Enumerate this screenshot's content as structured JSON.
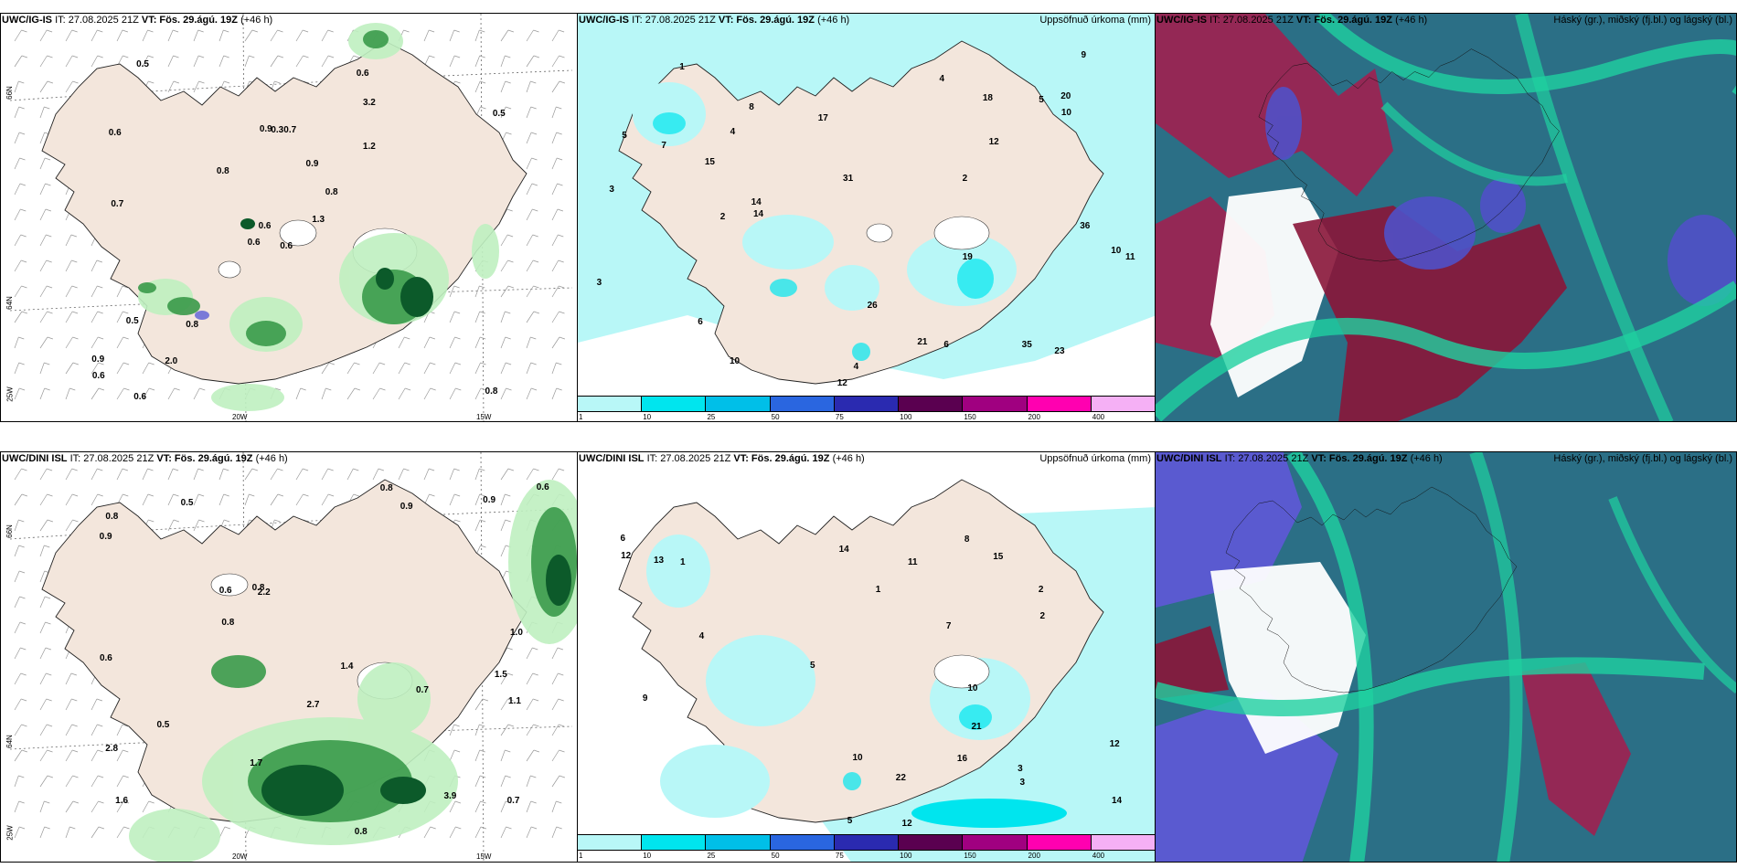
{
  "panels": [
    {
      "id": "top-left",
      "model": "UWC/IG-IS",
      "it": "IT: 27.08.2025 21Z",
      "vt": "VT: Fös. 29.ágú. 19Z",
      "lead": "(+46 h)",
      "right_title": "",
      "lead_wrap": "h)"
    },
    {
      "id": "top-mid",
      "model": "UWC/IG-IS",
      "it": "IT: 27.08.2025 21Z",
      "vt": "VT: Fös. 29.ágú. 19Z",
      "lead": "(+46 h)",
      "right_title": "Uppsöfnuð úrkoma (mm)"
    },
    {
      "id": "top-right",
      "model": "UWC/IG-IS",
      "it": "IT: 27.08.2025 21Z",
      "vt": "VT: Fös. 29.ágú. 19Z",
      "lead": "(+46 h)",
      "right_title": "Háský (gr.), miðský (fj.bl.) og lágský (bl.)"
    },
    {
      "id": "bottom-left",
      "model": "UWC/DINI ISL",
      "it": "IT: 27.08.2025 21Z",
      "vt": "VT: Fös. 29.ágú. 19Z",
      "lead": "(+46 h)",
      "right_title": ""
    },
    {
      "id": "bottom-mid",
      "model": "UWC/DINI ISL",
      "it": "IT: 27.08.2025 21Z",
      "vt": "VT: Fös. 29.ágú. 19Z",
      "lead": "(+46 h)",
      "right_title": "Uppsöfnuð úrkoma (mm)"
    },
    {
      "id": "bottom-right",
      "model": "UWC/DINI ISL",
      "it": "IT: 27.08.2025 21Z",
      "vt": "VT: Fös. 29.ágú. 19Z",
      "lead": "(+46 h)",
      "right_title": "Háský (gr.), miðský (fj.bl.) og lágský (bl.)"
    }
  ],
  "axis_labels": {
    "lat66": "66N",
    "lat64": "64N",
    "lon20": "20W",
    "lon15": "15W",
    "lon25": "25W"
  },
  "colorbar": {
    "ticks": [
      "1",
      "10",
      "25",
      "50",
      "75",
      "100",
      "150",
      "200",
      "400"
    ],
    "colors": [
      "#b8f7f7",
      "#00e5ee",
      "#00bfe8",
      "#2a66e0",
      "#2a2ab0",
      "#5a0050",
      "#a00080",
      "#ff00b0",
      "#f5b0f5"
    ]
  },
  "precip_labels_top": [
    "0.6",
    "0.6",
    "0.6",
    "0.9",
    "0.8",
    "0.8",
    "0.6",
    "0.7",
    "3.2",
    "1.3",
    "0.5",
    "0.8",
    "0.7",
    "0.5",
    "0.6",
    "1.2",
    "0.6",
    "0.9",
    "0.9",
    "0.5",
    "0.8",
    "0.6",
    "2.0",
    "0.3"
  ],
  "precip_labels_bottom": [
    "0.7",
    "1.5",
    "1.6",
    "0.5",
    "2.2",
    "3.9",
    "2.8",
    "0.9",
    "0.6",
    "0.8",
    "0.9",
    "0.6",
    "0.8",
    "0.7",
    "1.7",
    "1.0",
    "2.7",
    "1.4",
    "0.8",
    "0.5",
    "0.6",
    "0.9",
    "0.8",
    "1.1",
    "0.8"
  ],
  "accum_labels_top": [
    "5",
    "4",
    "2",
    "4",
    "5",
    "12",
    "19",
    "14",
    "20",
    "11",
    "10",
    "8",
    "12",
    "6",
    "3",
    "10",
    "14",
    "17",
    "23",
    "21",
    "35",
    "36",
    "31",
    "26",
    "18",
    "15",
    "10",
    "4",
    "1",
    "2",
    "3",
    "6",
    "9",
    "7"
  ],
  "accum_labels_bottom": [
    "1",
    "3",
    "6",
    "2",
    "5",
    "14",
    "12",
    "8",
    "4",
    "9",
    "3",
    "11",
    "10",
    "13",
    "14",
    "15",
    "12",
    "16",
    "22",
    "21",
    "12",
    "10",
    "7",
    "5",
    "2",
    "1"
  ]
}
